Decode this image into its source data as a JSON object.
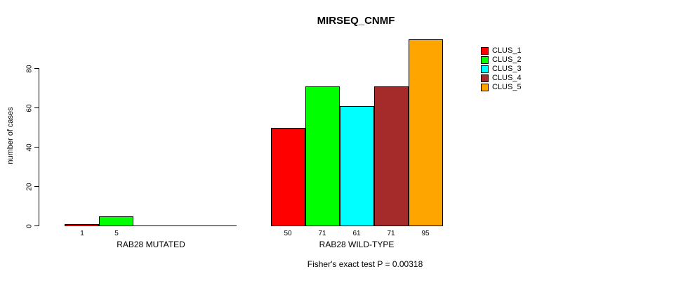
{
  "chart_data": {
    "type": "bar",
    "title": "MIRSEQ_CNMF",
    "ylabel": "number of cases",
    "annotation": "Fisher's exact test P = 0.00318",
    "ylim": [
      0,
      95
    ],
    "yticks": [
      0,
      20,
      40,
      60,
      80
    ],
    "grid": false,
    "legend_position": "top-right",
    "categories": [
      "RAB28 MUTATED",
      "RAB28 WILD-TYPE"
    ],
    "series": [
      {
        "name": "CLUS_1",
        "color": "#FF0000",
        "values": [
          1,
          50
        ]
      },
      {
        "name": "CLUS_2",
        "color": "#00FF00",
        "values": [
          5,
          71
        ]
      },
      {
        "name": "CLUS_3",
        "color": "#00FFFF",
        "values": [
          0,
          61
        ]
      },
      {
        "name": "CLUS_4",
        "color": "#A52A2A",
        "values": [
          0,
          71
        ]
      },
      {
        "name": "CLUS_5",
        "color": "#FFA500",
        "values": [
          0,
          95
        ]
      }
    ]
  }
}
